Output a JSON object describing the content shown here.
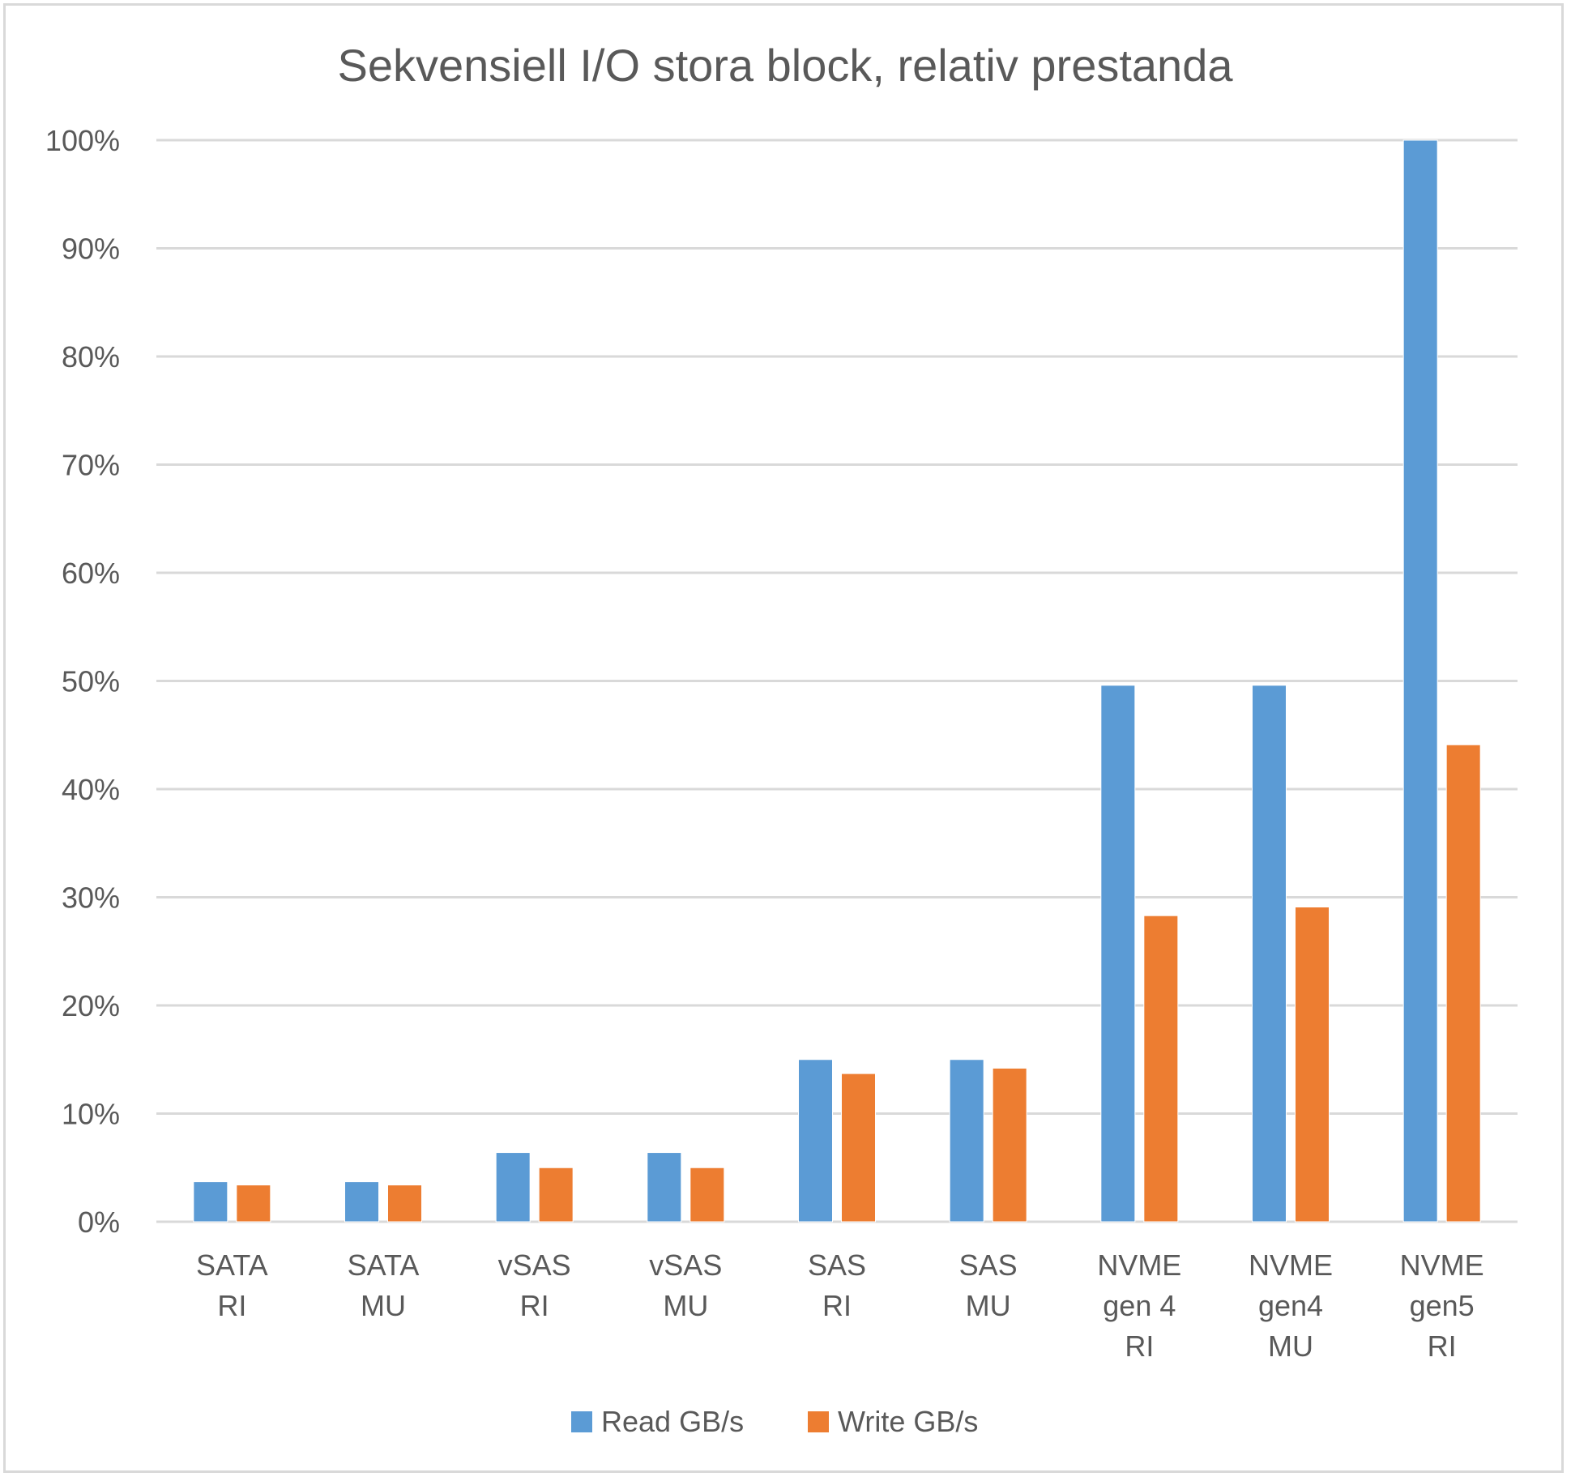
{
  "chart_data": {
    "type": "bar",
    "title": "Sekvensiell I/O stora block, relativ prestanda",
    "xlabel": "",
    "ylabel": "",
    "ylim": [
      0,
      100
    ],
    "y_ticks": [
      "0%",
      "10%",
      "20%",
      "30%",
      "40%",
      "50%",
      "60%",
      "70%",
      "80%",
      "90%",
      "100%"
    ],
    "y_tick_values": [
      0,
      10,
      20,
      30,
      40,
      50,
      60,
      70,
      80,
      90,
      100
    ],
    "grid": true,
    "legend_position": "bottom",
    "categories": [
      [
        "SATA",
        "RI"
      ],
      [
        "SATA",
        "MU"
      ],
      [
        "vSAS",
        "RI"
      ],
      [
        "vSAS",
        "MU"
      ],
      [
        "SAS",
        "RI"
      ],
      [
        "SAS",
        "MU"
      ],
      [
        "NVME",
        "gen 4",
        "RI"
      ],
      [
        "NVME",
        "gen4",
        "MU"
      ],
      [
        "NVME",
        "gen5",
        "RI"
      ]
    ],
    "series": [
      {
        "name": "Read GB/s",
        "color": "#5b9bd5",
        "values": [
          3.7,
          3.7,
          6.4,
          6.4,
          15.0,
          15.0,
          49.6,
          49.6,
          100.0
        ]
      },
      {
        "name": "Write GB/s",
        "color": "#ed7d31",
        "values": [
          3.4,
          3.4,
          5.0,
          5.0,
          13.7,
          14.2,
          28.3,
          29.1,
          44.1
        ]
      }
    ]
  },
  "colors": {
    "gridline": "#d9d9d9",
    "text": "#595959",
    "border": "#d9d9d9"
  }
}
